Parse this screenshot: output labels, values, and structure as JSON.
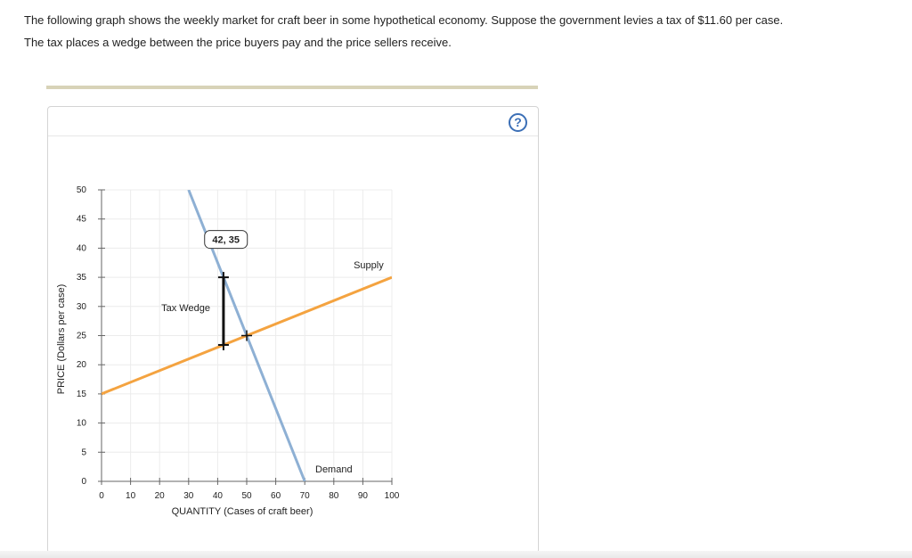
{
  "intro": {
    "line1": "The following graph shows the weekly market for craft beer in some hypothetical economy. Suppose the government levies a tax of $11.60 per case.",
    "line2": "The tax places a wedge between the price buyers pay and the price sellers receive."
  },
  "help": {
    "label": "?"
  },
  "colors": {
    "supply": "#f4a340",
    "demand": "#8eb0d4",
    "grid": "#ececec",
    "axis": "#666666",
    "help": "#3b6fb6"
  },
  "chart_data": {
    "type": "line",
    "xlabel": "QUANTITY (Cases of craft beer)",
    "ylabel": "PRICE (Dollars per case)",
    "xlim": [
      0,
      100
    ],
    "ylim": [
      0,
      50
    ],
    "xticks": [
      0,
      10,
      20,
      30,
      40,
      50,
      60,
      70,
      80,
      90,
      100
    ],
    "yticks": [
      0,
      5,
      10,
      15,
      20,
      25,
      30,
      35,
      40,
      45,
      50
    ],
    "grid": true,
    "series": [
      {
        "name": "Supply",
        "x": [
          0,
          100
        ],
        "y": [
          15,
          35
        ]
      },
      {
        "name": "Demand",
        "x": [
          30,
          70
        ],
        "y": [
          50,
          0
        ]
      }
    ],
    "tax_wedge": {
      "label": "Tax Wedge",
      "quantity": 42,
      "buyer_price": 35,
      "seller_price": 23.4
    },
    "equilibrium": {
      "x": 50,
      "y": 25
    },
    "point_label": "42, 35"
  }
}
